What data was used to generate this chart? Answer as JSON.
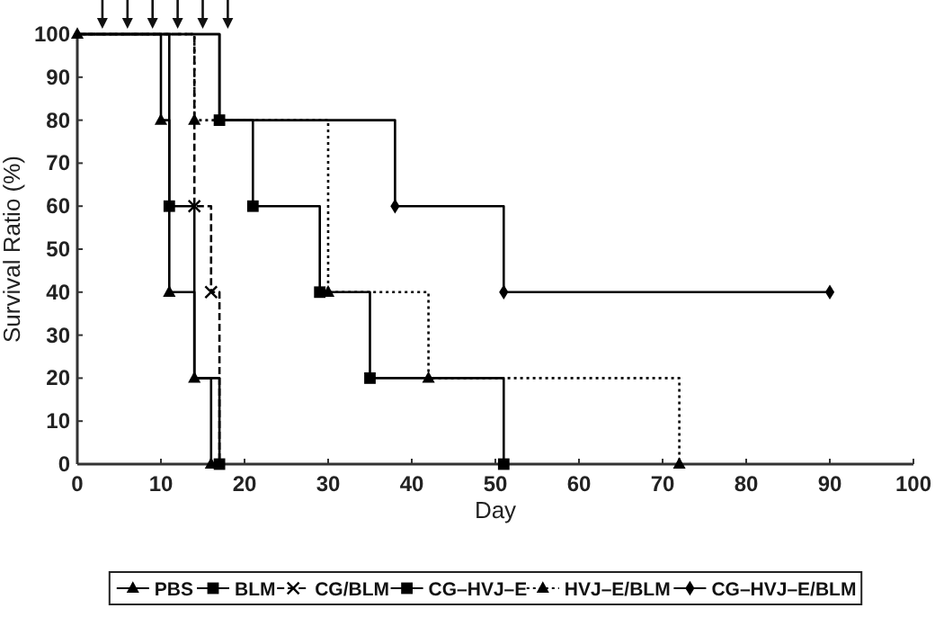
{
  "chart_data": {
    "type": "step",
    "xlabel": "Day",
    "ylabel": "Survival Ratio (%)",
    "xlim": [
      0,
      100
    ],
    "ylim": [
      0,
      100
    ],
    "xticks": [
      0,
      10,
      20,
      30,
      40,
      50,
      60,
      70,
      80,
      90,
      100
    ],
    "yticks": [
      0,
      10,
      20,
      30,
      40,
      50,
      60,
      70,
      80,
      90,
      100
    ],
    "grid": false,
    "legend": "bottom",
    "series": [
      {
        "name": "PBS",
        "color": "#000000",
        "marker": "triangle",
        "line_style": "solid",
        "x": [
          0,
          10,
          11,
          14,
          16
        ],
        "values": [
          100,
          80,
          40,
          20,
          0
        ]
      },
      {
        "name": "BLM",
        "color": "#000000",
        "marker": "square",
        "line_style": "solid",
        "x": [
          0,
          11,
          14,
          17
        ],
        "values": [
          100,
          60,
          20,
          0
        ]
      },
      {
        "name": "CG/BLM",
        "color": "#000000",
        "marker": "cross",
        "line_style": "dashed",
        "x": [
          0,
          14,
          16,
          17
        ],
        "values": [
          100,
          60,
          40,
          0
        ]
      },
      {
        "name": "CG–HVJ–E",
        "color": "#000000",
        "marker": "square",
        "line_style": "solid",
        "x": [
          0,
          17,
          21,
          29,
          35,
          51
        ],
        "values": [
          100,
          80,
          60,
          40,
          20,
          0
        ]
      },
      {
        "name": "HVJ–E/BLM",
        "color": "#000000",
        "marker": "triangle",
        "line_style": "dotted",
        "x": [
          0,
          14,
          30,
          42,
          72
        ],
        "values": [
          100,
          80,
          40,
          20,
          0
        ]
      },
      {
        "name": "CG–HVJ–E/BLM",
        "color": "#000000",
        "marker": "diamond",
        "line_style": "solid",
        "x": [
          0,
          17,
          38,
          51,
          90
        ],
        "values": [
          100,
          80,
          60,
          40,
          40
        ]
      }
    ]
  }
}
